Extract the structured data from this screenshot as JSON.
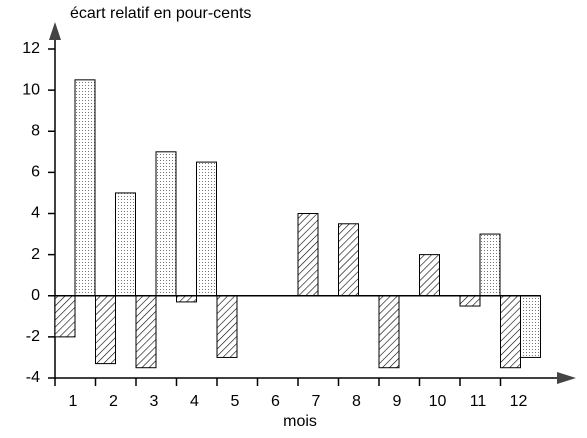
{
  "chart_data": {
    "type": "bar",
    "title": "écart relatif en pour-cents",
    "x_label": "mois",
    "categories": [
      "1",
      "2",
      "3",
      "4",
      "5",
      "6",
      "7",
      "8",
      "9",
      "10",
      "11",
      "12"
    ],
    "series": [
      {
        "color": "#000000",
        "pattern": "hatch",
        "values": [
          -2,
          -3.3,
          -3.5,
          -0.3,
          -3,
          0,
          4,
          3.5,
          -3.5,
          2,
          -0.5,
          -3.5
        ]
      },
      {
        "color": "#000000",
        "pattern": "dots",
        "values": [
          10.5,
          5,
          7,
          6.5,
          0,
          0,
          0,
          0,
          0,
          0,
          3,
          -3
        ]
      }
    ],
    "ylim": [
      -4,
      12
    ],
    "yticks": [
      -4,
      -2,
      0,
      2,
      4,
      6,
      8,
      10,
      12
    ],
    "grid": false
  }
}
